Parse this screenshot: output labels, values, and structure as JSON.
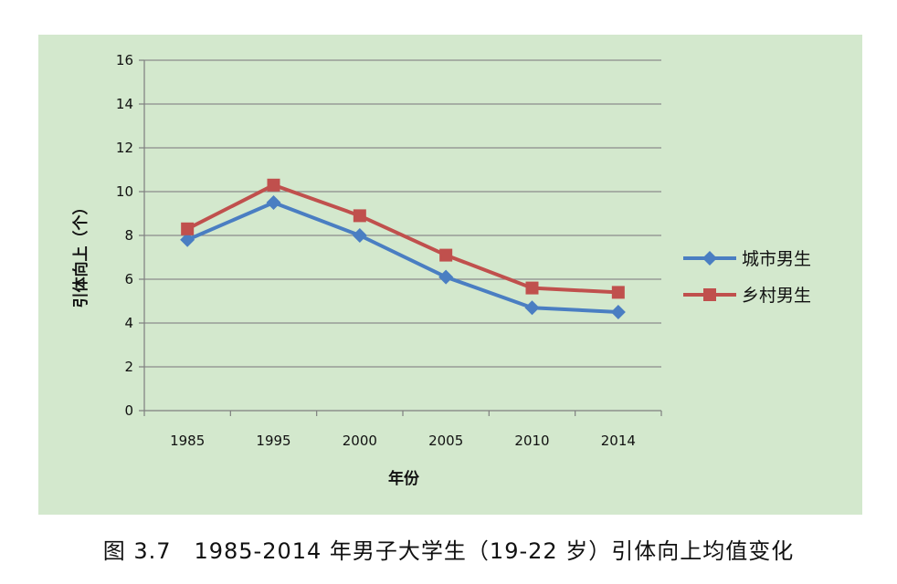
{
  "chart_data": {
    "type": "line",
    "title": "",
    "xlabel": "年份",
    "ylabel": "引体向上（个）",
    "categories": [
      "1985",
      "1995",
      "2000",
      "2005",
      "2010",
      "2014"
    ],
    "ylim": [
      0,
      16
    ],
    "yticks": [
      0,
      2,
      4,
      6,
      8,
      10,
      12,
      14,
      16
    ],
    "grid": true,
    "legend_position": "right",
    "series": [
      {
        "name": "城市男生",
        "marker": "diamond",
        "color": "#4a7ec2",
        "values": [
          7.8,
          9.5,
          8.0,
          6.1,
          4.7,
          4.5
        ]
      },
      {
        "name": "乡村男生",
        "marker": "square",
        "color": "#c0504d",
        "values": [
          8.3,
          10.3,
          8.9,
          7.1,
          5.6,
          5.4
        ]
      }
    ]
  },
  "caption": "图 3.7　1985-2014 年男子大学生（19-22 岁）引体向上均值变化"
}
